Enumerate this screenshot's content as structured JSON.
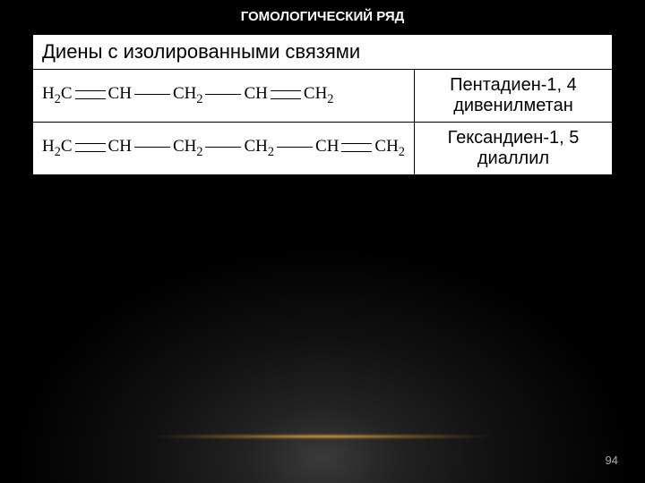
{
  "slide": {
    "title": "ГОМОЛОГИЧЕСКИЙ РЯД",
    "header": "Диены с изолированными связями",
    "page_number": "94",
    "title_fontsize": 15,
    "header_fontsize": 22,
    "name_fontsize": 20,
    "formula_fontsize": 19,
    "pagenum_fontsize": 13,
    "background_color": "#000000",
    "table_bg": "#ffffff",
    "border_color": "#000000",
    "col_widths": [
      "65%",
      "35%"
    ]
  },
  "rows": [
    {
      "formula_units": [
        "H2C",
        "=",
        "CH",
        "-",
        "CH2",
        "-",
        "CH",
        "=",
        "CH2"
      ],
      "name_line1": "Пентадиен-1, 4",
      "name_line2": "дивенилметан"
    },
    {
      "formula_units": [
        "H2C",
        "=",
        "CH",
        "-",
        "CH2",
        "-",
        "CH2",
        "-",
        "CH",
        "=",
        "CH2"
      ],
      "name_line1": "Гександиен-1, 5",
      "name_line2": "диаллил"
    }
  ]
}
